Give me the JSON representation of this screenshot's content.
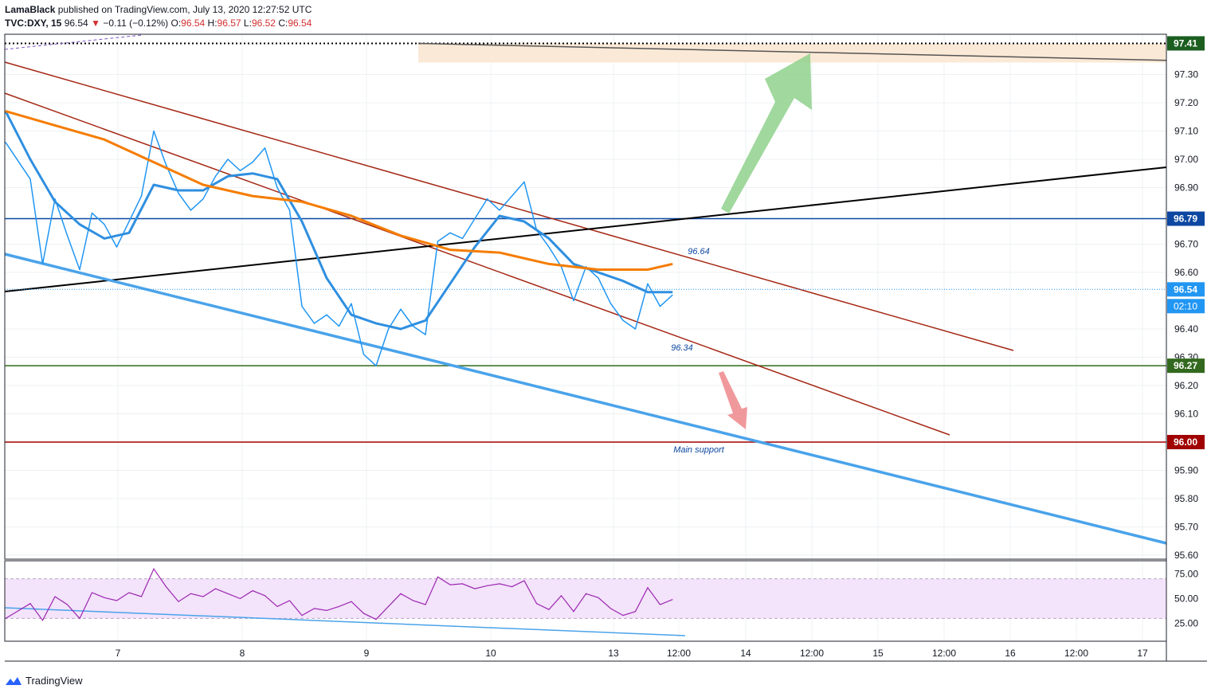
{
  "header": {
    "author": "LamaBlack",
    "published_text": "published on TradingView.com, July 13, 2020 12:27:52 UTC",
    "symbol": "TVC:DXY, 15",
    "last": "96.54",
    "change_arrow": "▼",
    "change": "−0.11 (−0.12%)",
    "o_label": "O:",
    "o_value": "96.54",
    "h_label": "H:",
    "h_value": "96.57",
    "l_label": "L:",
    "l_value": "96.52",
    "c_label": "C:",
    "c_value": "96.54"
  },
  "brand": {
    "name": "TradingView",
    "icon": "tradingview-logo-icon"
  },
  "colors": {
    "price_line": "#2196f3",
    "ma_fast": "#2f8fe0",
    "ma_slow": "#f57c00",
    "channel": "#a52714",
    "support_line": "#4aa3ea",
    "trend_line": "#000000",
    "resistance_level": "#0d47a1",
    "support_level": "#33691e",
    "main_support_level": "#a00000",
    "rsi": "#9c27b0",
    "rsi_band": "#f3e3fb",
    "up_arrow": "#8fd18c",
    "down_arrow": "#ee8e91"
  },
  "chart_data": {
    "type": "line",
    "title": "TVC:DXY, 15",
    "x_ticks": [
      "7",
      "8",
      "9",
      "10",
      "13",
      "12:00",
      "14",
      "12:00",
      "15",
      "12:00",
      "16",
      "12:00",
      "17"
    ],
    "y_ticks": [
      "97.30",
      "97.20",
      "97.10",
      "97.00",
      "96.90",
      "96.70",
      "96.60",
      "96.40",
      "96.30",
      "96.20",
      "96.10",
      "95.90",
      "95.80",
      "95.70",
      "95.60"
    ],
    "ylim": [
      95.57,
      97.46
    ],
    "grid": true,
    "series": [
      {
        "name": "",
        "role": "price",
        "x": [
          0,
          2,
          3,
          4,
          5,
          6,
          7,
          8,
          9,
          10,
          11,
          12,
          13,
          14,
          15,
          16,
          17,
          18,
          19,
          20,
          21,
          22,
          23,
          24,
          25,
          26,
          27,
          28,
          29,
          30,
          31,
          32,
          33,
          34,
          35,
          36,
          37,
          38,
          39,
          40,
          41,
          42,
          43,
          44,
          45,
          46,
          47,
          48,
          49,
          50,
          51,
          52,
          53,
          54
        ],
        "values": [
          97.06,
          96.93,
          96.63,
          96.86,
          96.73,
          96.61,
          96.81,
          96.77,
          96.69,
          96.78,
          96.87,
          97.1,
          96.98,
          96.88,
          96.82,
          96.86,
          96.94,
          97.0,
          96.96,
          96.99,
          97.04,
          96.9,
          96.82,
          96.48,
          96.42,
          96.45,
          96.41,
          96.49,
          96.31,
          96.27,
          96.4,
          96.47,
          96.41,
          96.38,
          96.71,
          96.74,
          96.72,
          96.79,
          96.86,
          96.82,
          96.87,
          96.92,
          96.75,
          96.69,
          96.62,
          96.5,
          96.62,
          96.58,
          96.49,
          96.43,
          96.4,
          96.56,
          96.48,
          96.52
        ]
      },
      {
        "name": "",
        "role": "moving-average-fast",
        "x": [
          0,
          2,
          4,
          6,
          8,
          10,
          12,
          14,
          16,
          18,
          20,
          22,
          24,
          26,
          28,
          30,
          32,
          34,
          36,
          38,
          40,
          42,
          44,
          46,
          48,
          50,
          52,
          54
        ],
        "values": [
          97.17,
          97.0,
          96.85,
          96.77,
          96.72,
          96.74,
          96.91,
          96.89,
          96.89,
          96.94,
          96.95,
          96.93,
          96.78,
          96.58,
          96.45,
          96.42,
          96.4,
          96.43,
          96.56,
          96.69,
          96.8,
          96.78,
          96.72,
          96.63,
          96.6,
          96.57,
          96.53,
          96.53
        ]
      },
      {
        "name": "",
        "role": "moving-average-slow",
        "x": [
          0,
          4,
          8,
          12,
          16,
          20,
          24,
          28,
          32,
          36,
          40,
          44,
          48,
          52,
          54
        ],
        "values": [
          97.17,
          97.12,
          97.07,
          96.99,
          96.91,
          96.87,
          96.85,
          96.8,
          96.73,
          96.68,
          96.67,
          96.63,
          96.61,
          96.61,
          96.63
        ]
      }
    ],
    "horizontal_levels": [
      97.41,
      96.79,
      96.27,
      96.0
    ],
    "last_value": 96.54,
    "countdown": "02:10",
    "annotations": [
      "96.64",
      "96.34",
      "Main support"
    ],
    "rsi": {
      "ylim": [
        15,
        85
      ],
      "y_ticks": [
        "75.00",
        "50.00",
        "25.00"
      ],
      "band": [
        30,
        70
      ],
      "x": [
        0,
        2,
        3,
        4,
        5,
        6,
        7,
        8,
        9,
        10,
        11,
        12,
        13,
        14,
        15,
        16,
        17,
        18,
        19,
        20,
        21,
        22,
        23,
        24,
        25,
        26,
        27,
        28,
        29,
        30,
        31,
        32,
        33,
        34,
        35,
        36,
        37,
        38,
        39,
        40,
        41,
        42,
        43,
        44,
        45,
        46,
        47,
        48,
        49,
        50,
        51,
        52,
        53,
        54
      ],
      "values": [
        30,
        45,
        28,
        52,
        44,
        30,
        56,
        51,
        48,
        56,
        52,
        80,
        62,
        47,
        55,
        52,
        60,
        55,
        50,
        58,
        53,
        42,
        48,
        33,
        40,
        38,
        42,
        47,
        35,
        29,
        42,
        55,
        48,
        44,
        72,
        64,
        65,
        60,
        63,
        65,
        62,
        68,
        45,
        39,
        53,
        37,
        55,
        51,
        40,
        33,
        37,
        61,
        44,
        49
      ]
    }
  }
}
